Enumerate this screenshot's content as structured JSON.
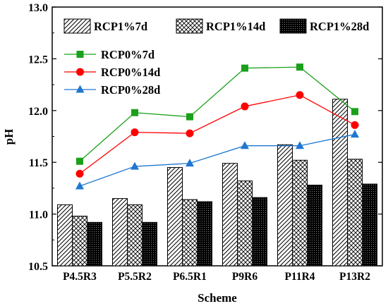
{
  "chart_data": {
    "type": "bar",
    "xlabel": "Scheme",
    "ylabel": "pH",
    "ylim": [
      10.5,
      13.0
    ],
    "yticks": [
      "10.5",
      "11.0",
      "11.5",
      "12.0",
      "12.5",
      "13.0"
    ],
    "categories": [
      "P4.5R3",
      "P5.5R2",
      "P6.5R1",
      "P9R6",
      "P11R4",
      "P13R2"
    ],
    "bar_series": [
      {
        "name": "RCP1%7d",
        "pattern": "hatch",
        "values": [
          11.09,
          11.15,
          11.45,
          11.49,
          11.67,
          12.11
        ]
      },
      {
        "name": "RCP1%14d",
        "pattern": "crosshatch",
        "values": [
          10.98,
          11.09,
          11.14,
          11.32,
          11.52,
          11.53
        ]
      },
      {
        "name": "RCP1%28d",
        "pattern": "dots",
        "values": [
          10.92,
          10.92,
          11.12,
          11.16,
          11.28,
          11.29
        ]
      }
    ],
    "line_series": [
      {
        "name": "RCP0%7d",
        "color": "#1aa01a",
        "marker": "square",
        "values": [
          11.51,
          11.98,
          11.94,
          12.41,
          12.42,
          11.99
        ]
      },
      {
        "name": "RCP0%14d",
        "color": "#ff0000",
        "marker": "circle",
        "values": [
          11.39,
          11.79,
          11.78,
          12.04,
          12.15,
          11.86
        ]
      },
      {
        "name": "RCP0%28d",
        "color": "#1f77d0",
        "marker": "triangle",
        "values": [
          11.27,
          11.46,
          11.49,
          11.66,
          11.66,
          11.77
        ]
      }
    ],
    "legend_placement": "top"
  }
}
